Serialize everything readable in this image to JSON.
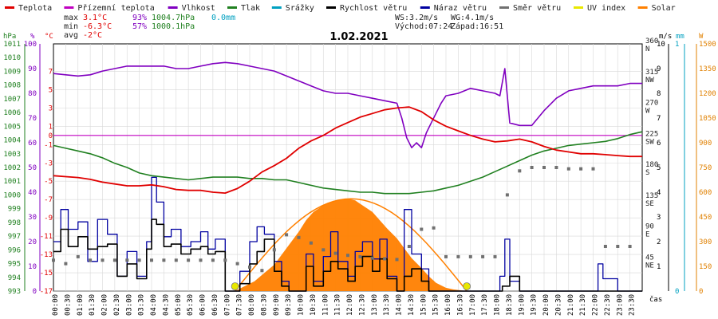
{
  "chart_data": {
    "type": "line",
    "title": "1.02.2021",
    "legend": [
      {
        "label": "Teplota",
        "color": "#e00000"
      },
      {
        "label": "Přízemní teplota",
        "color": "#c000c0"
      },
      {
        "label": "Vlhkost",
        "color": "#8000c0"
      },
      {
        "label": "Tlak",
        "color": "#208020"
      },
      {
        "label": "Srážky",
        "color": "#00a0c0"
      },
      {
        "label": "Rychlost větru",
        "color": "#000000"
      },
      {
        "label": "Náraz větru",
        "color": "#0000a0"
      },
      {
        "label": "Směr větru",
        "color": "#707070"
      },
      {
        "label": "UV index",
        "color": "#e8e800"
      },
      {
        "label": "Solar",
        "color": "#ff8000"
      }
    ],
    "stats": {
      "max_label": "max",
      "max_temp": "3.1°C",
      "max_hum": "93%",
      "max_press": "1004.7hPa",
      "max_precip": "0.0mm",
      "min_label": "min",
      "min_temp": "-6.3°C",
      "min_hum": "57%",
      "min_press": "1000.1hPa",
      "avg_label": "avg",
      "avg_temp": "-2°C"
    },
    "info": {
      "ws": "WS:3.2m/s",
      "wg": "WG:4.1m/s",
      "sunrise": "Východ:07:24",
      "sunset": "Západ:16:51"
    },
    "units": {
      "hpa": "hPa",
      "pct": "%",
      "degc": "°C",
      "ms": "m/s",
      "mm": "mm",
      "w": "W",
      "time": "čas"
    },
    "axes": {
      "hpa": [
        "993",
        "994",
        "995",
        "996",
        "997",
        "998",
        "999",
        "1000",
        "1001",
        "1002",
        "1003",
        "1004",
        "1005",
        "1006",
        "1007",
        "1008",
        "1009",
        "1010",
        "1011"
      ],
      "pct": [
        "0",
        "10",
        "20",
        "30",
        "40",
        "50",
        "60",
        "70",
        "80",
        "90",
        "100"
      ],
      "degc": [
        "-17",
        "-15",
        "-13",
        "-11",
        "-9",
        "-7",
        "-5",
        "-3",
        "-1",
        "1",
        "3",
        "5",
        "7"
      ],
      "deg0": "0",
      "dir_deg": [
        "45",
        "90",
        "135",
        "180",
        "225",
        "270",
        "315",
        "360"
      ],
      "dir_label": [
        "NE",
        "E",
        "SE",
        "S",
        "SW",
        "W",
        "NW",
        "N"
      ],
      "ms": [
        "1",
        "2",
        "3",
        "4",
        "5",
        "6",
        "7",
        "8",
        "9",
        "10"
      ],
      "mm": [
        "0",
        "1"
      ],
      "w": [
        "0",
        "150",
        "300",
        "450",
        "600",
        "750",
        "900",
        "1050",
        "1200",
        "1350",
        "1500"
      ],
      "times": [
        "00:00",
        "00:30",
        "01:00",
        "01:30",
        "02:00",
        "02:30",
        "03:00",
        "03:30",
        "04:00",
        "04:30",
        "05:00",
        "05:30",
        "06:00",
        "06:30",
        "07:00",
        "07:30",
        "08:00",
        "08:30",
        "09:00",
        "09:30",
        "10:00",
        "10:30",
        "11:00",
        "11:30",
        "12:00",
        "12:30",
        "13:00",
        "13:30",
        "14:00",
        "14:30",
        "15:00",
        "15:30",
        "16:00",
        "16:30",
        "17:00",
        "17:30",
        "18:00",
        "18:30",
        "19:00",
        "19:30",
        "20:00",
        "20:30",
        "21:00",
        "21:30",
        "22:00",
        "22:30",
        "23:00",
        "23:30"
      ]
    },
    "ranges": {
      "temp_c": [
        -17,
        10
      ],
      "humidity_pct": [
        0,
        100
      ],
      "pressure_hpa": [
        993,
        1011
      ],
      "wind_ms": [
        0,
        10
      ],
      "direction_deg": [
        0,
        360
      ],
      "solar_w": [
        0,
        1500
      ],
      "hours": [
        0,
        24
      ]
    },
    "series": [
      {
        "name": "Teplota",
        "key": "temp",
        "x_h": [
          0,
          0.5,
          1,
          1.5,
          2,
          2.5,
          3,
          3.5,
          4,
          4.5,
          5,
          5.5,
          6,
          6.5,
          7,
          7.5,
          8,
          8.5,
          9,
          9.5,
          10,
          10.5,
          11,
          11.5,
          12,
          12.5,
          13,
          13.5,
          14,
          14.5,
          15,
          15.5,
          16,
          16.5,
          17,
          17.5,
          18,
          18.5,
          19,
          19.5,
          20,
          20.5,
          21,
          21.5,
          22,
          22.5,
          23,
          23.5,
          24
        ],
        "values": [
          -4.4,
          -4.5,
          -4.6,
          -4.8,
          -5.1,
          -5.3,
          -5.5,
          -5.5,
          -5.4,
          -5.6,
          -5.9,
          -6.0,
          -6.0,
          -6.2,
          -6.3,
          -5.8,
          -5.0,
          -4.0,
          -3.3,
          -2.5,
          -1.4,
          -0.6,
          0.0,
          0.8,
          1.4,
          2.0,
          2.4,
          2.8,
          3.0,
          3.1,
          2.6,
          1.7,
          1.0,
          0.5,
          0.0,
          -0.4,
          -0.7,
          -0.6,
          -0.4,
          -0.7,
          -1.2,
          -1.6,
          -1.8,
          -2.0,
          -2.0,
          -2.1,
          -2.2,
          -2.3,
          -2.3
        ]
      },
      {
        "name": "Přízemní teplota",
        "key": "ground",
        "x_h": [
          0,
          24
        ],
        "values": [
          0,
          0
        ]
      },
      {
        "name": "Vlhkost",
        "key": "hum",
        "x_h": [
          0,
          0.5,
          1,
          1.5,
          2,
          2.5,
          3,
          3.5,
          4,
          4.5,
          5,
          5.5,
          6,
          6.5,
          7,
          7.5,
          8,
          8.5,
          9,
          9.5,
          10,
          10.5,
          11,
          11.5,
          12,
          12.5,
          13,
          13.5,
          14,
          14.2,
          14.4,
          14.6,
          14.8,
          15,
          15.2,
          15.4,
          15.6,
          15.8,
          16,
          16.5,
          17,
          17.5,
          18,
          18.2,
          18.4,
          18.6,
          19,
          19.5,
          20,
          20.5,
          21,
          21.5,
          22,
          22.5,
          23,
          23.5,
          24
        ],
        "values": [
          88,
          87.5,
          87,
          87.5,
          89,
          90,
          91,
          91,
          91,
          91,
          90,
          90,
          91,
          92,
          92.5,
          92,
          91,
          90,
          89,
          87,
          85,
          83,
          81,
          80,
          80,
          79,
          78,
          77,
          76,
          70,
          62,
          58,
          60,
          58,
          64,
          68,
          72,
          76,
          79,
          80,
          82,
          81,
          80,
          79,
          90,
          68,
          67,
          67,
          73,
          78,
          81,
          82,
          83,
          83,
          83,
          84,
          84
        ]
      },
      {
        "name": "Tlak",
        "key": "press",
        "x_h": [
          0,
          0.5,
          1,
          1.5,
          2,
          2.5,
          3,
          3.5,
          4,
          4.5,
          5,
          5.5,
          6,
          6.5,
          7,
          7.5,
          8,
          8.5,
          9,
          9.5,
          10,
          10.5,
          11,
          11.5,
          12,
          12.5,
          13,
          13.5,
          14,
          14.5,
          15,
          15.5,
          16,
          16.5,
          17,
          17.5,
          18,
          18.5,
          19,
          19.5,
          20,
          20.5,
          21,
          21.5,
          22,
          22.5,
          23,
          23.5,
          24
        ],
        "values": [
          1003.6,
          1003.4,
          1003.2,
          1003.0,
          1002.7,
          1002.3,
          1002.0,
          1001.6,
          1001.4,
          1001.3,
          1001.2,
          1001.1,
          1001.2,
          1001.3,
          1001.3,
          1001.3,
          1001.2,
          1001.2,
          1001.1,
          1001.1,
          1000.9,
          1000.7,
          1000.5,
          1000.4,
          1000.3,
          1000.2,
          1000.2,
          1000.1,
          1000.1,
          1000.1,
          1000.2,
          1000.3,
          1000.5,
          1000.7,
          1001.0,
          1001.3,
          1001.7,
          1002.1,
          1002.5,
          1002.9,
          1003.2,
          1003.4,
          1003.6,
          1003.7,
          1003.8,
          1003.9,
          1004.1,
          1004.4,
          1004.6
        ]
      },
      {
        "name": "Rychlost větru",
        "key": "wind",
        "x_h": [
          0,
          0.3,
          0.6,
          1,
          1.4,
          1.8,
          2.2,
          2.6,
          3,
          3.4,
          3.8,
          4,
          4.2,
          4.5,
          4.8,
          5.2,
          5.6,
          6,
          6.3,
          6.6,
          7,
          7.3,
          7.6,
          8,
          8.3,
          8.6,
          9,
          9.3,
          9.6,
          10,
          10.3,
          10.6,
          11,
          11.3,
          11.6,
          12,
          12.3,
          12.6,
          13,
          13.3,
          13.6,
          14,
          14.3,
          14.6,
          15,
          15.3,
          15.6,
          16,
          16.3,
          16.6,
          17,
          17.5,
          18,
          18.3,
          18.6,
          19,
          19.5,
          20,
          20.5,
          21,
          21.5,
          22,
          22.3,
          22.6,
          23,
          23.5,
          24
        ],
        "values": [
          1.6,
          2.5,
          1.8,
          2.2,
          1.7,
          1.8,
          1.9,
          0.6,
          1.1,
          0.5,
          1.7,
          2.9,
          2.7,
          1.8,
          1.9,
          1.5,
          1.7,
          1.8,
          1.5,
          1.6,
          0,
          0,
          0.3,
          1.1,
          1.6,
          2.1,
          0.8,
          0.2,
          0,
          0,
          1.0,
          0.2,
          0.8,
          1.2,
          0.9,
          0.4,
          1.0,
          1.4,
          0.8,
          1.3,
          0.5,
          0,
          0.6,
          0.9,
          0.4,
          0,
          0,
          0,
          0,
          0,
          0,
          0,
          0,
          0.2,
          0.6,
          0,
          0,
          0,
          0,
          0,
          0,
          0,
          0,
          0,
          0,
          0,
          0
        ]
      },
      {
        "name": "Náraz větru",
        "key": "gust",
        "x_h": [
          0,
          0.3,
          0.6,
          1,
          1.4,
          1.8,
          2.2,
          2.6,
          3,
          3.4,
          3.8,
          4,
          4.2,
          4.5,
          4.8,
          5.2,
          5.6,
          6,
          6.3,
          6.6,
          7,
          7.3,
          7.6,
          8,
          8.3,
          8.6,
          9,
          9.3,
          9.6,
          10,
          10.3,
          10.6,
          11,
          11.3,
          11.6,
          12,
          12.3,
          12.6,
          13,
          13.3,
          13.6,
          14,
          14.3,
          14.6,
          15,
          15.3,
          15.6,
          16,
          16.3,
          16.6,
          17,
          17.5,
          18,
          18.2,
          18.4,
          18.6,
          19,
          19.5,
          20,
          20.5,
          21,
          21.5,
          22,
          22.2,
          22.4,
          22.6,
          23,
          23.5,
          24
        ],
        "values": [
          2.0,
          3.3,
          2.5,
          2.8,
          1.2,
          2.9,
          2.3,
          0.6,
          1.6,
          0.6,
          2.0,
          4.6,
          3.6,
          2.2,
          2.5,
          1.8,
          2.0,
          2.4,
          1.7,
          2.1,
          0,
          0,
          0.8,
          2.0,
          2.6,
          2.3,
          1.2,
          0.4,
          0,
          0,
          1.5,
          0.4,
          1.4,
          2.4,
          1.2,
          0.6,
          1.6,
          2.0,
          1.3,
          2.1,
          0.6,
          0,
          3.3,
          1.5,
          0.9,
          0,
          0,
          0,
          0,
          0,
          0,
          0,
          0,
          0.6,
          2.1,
          0.4,
          0,
          0,
          0,
          0,
          0,
          0,
          0,
          1.1,
          0.5,
          0.5,
          0,
          0,
          0
        ]
      },
      {
        "name": "Solar",
        "key": "solar",
        "x_h": [
          7.4,
          7.8,
          8.2,
          8.6,
          9,
          9.3,
          9.6,
          10,
          10.3,
          10.6,
          11,
          11.3,
          11.6,
          12,
          12.3,
          12.6,
          13,
          13.3,
          13.6,
          14,
          14.3,
          14.6,
          15,
          15.3,
          15.6,
          16,
          16.3,
          16.6,
          16.85
        ],
        "values": [
          0,
          30,
          60,
          110,
          160,
          220,
          280,
          360,
          430,
          480,
          520,
          540,
          550,
          560,
          550,
          520,
          480,
          430,
          380,
          320,
          260,
          200,
          140,
          90,
          50,
          20,
          10,
          5,
          0
        ]
      }
    ],
    "direction": {
      "name": "Směr větru",
      "x_h": [
        0,
        0.5,
        1,
        1.5,
        2,
        2.5,
        3,
        3.5,
        4,
        4.5,
        5,
        5.5,
        6,
        6.5,
        7,
        7.5,
        8,
        8.5,
        9,
        9.5,
        10,
        10.5,
        11,
        11.5,
        12,
        12.5,
        13,
        13.5,
        14,
        14.5,
        15,
        15.5,
        16,
        16.5,
        17,
        17.5,
        18,
        18.5,
        19,
        19.5,
        20,
        20.5,
        21,
        21.5,
        22,
        22.5,
        23,
        23.5
      ],
      "values": [
        45,
        40,
        50,
        45,
        45,
        45,
        45,
        45,
        45,
        45,
        45,
        45,
        45,
        45,
        45,
        40,
        35,
        30,
        60,
        82,
        78,
        70,
        60,
        55,
        52,
        50,
        48,
        47,
        46,
        65,
        90,
        92,
        50,
        50,
        50,
        50,
        50,
        140,
        175,
        180,
        180,
        180,
        178,
        178,
        178,
        65,
        65,
        65
      ]
    },
    "sun_arc": {
      "sunrise_h": 7.4,
      "sunset_h": 16.85,
      "peak_w": 560
    }
  }
}
